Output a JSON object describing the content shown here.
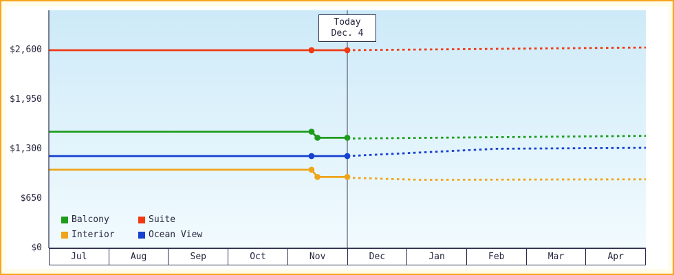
{
  "colors": {
    "frame_border": "#f7a41d",
    "frame_bg": "#fffdea",
    "axis": "#2a2a4a",
    "text": "#26263e",
    "plot_top": "#cdeaf8",
    "plot_bottom": "#f2fbfe",
    "today_line": "#5a5a72"
  },
  "today": {
    "line1": "Today",
    "line2": "Dec. 4"
  },
  "chart_data": {
    "type": "line",
    "x_months": [
      "Jul",
      "Aug",
      "Sep",
      "Oct",
      "Nov",
      "Dec",
      "Jan",
      "Feb",
      "Mar",
      "Apr"
    ],
    "x_range_months": 10,
    "today_month_index": 5.0,
    "grid": false,
    "legend_position": "bottom-left",
    "ylim": [
      0,
      3100
    ],
    "y_ticks": [
      {
        "value": 0,
        "label": "$0"
      },
      {
        "value": 650,
        "label": "$650"
      },
      {
        "value": 1300,
        "label": "$1,300"
      },
      {
        "value": 1950,
        "label": "$1,950"
      },
      {
        "value": 2600,
        "label": "$2,600"
      }
    ],
    "series": [
      {
        "name": "Balcony",
        "color": "#1d9b1d",
        "past": [
          [
            0,
            1530
          ],
          [
            4.4,
            1530
          ],
          [
            4.5,
            1450
          ],
          [
            5,
            1450
          ]
        ],
        "markers": [
          [
            4.4,
            1530
          ],
          [
            4.5,
            1450
          ],
          [
            5,
            1450
          ]
        ],
        "forecast": [
          [
            5,
            1440
          ],
          [
            10,
            1475
          ]
        ]
      },
      {
        "name": "Suite",
        "color": "#f03913",
        "past": [
          [
            0,
            2600
          ],
          [
            5,
            2600
          ]
        ],
        "markers": [
          [
            4.4,
            2600
          ],
          [
            5,
            2600
          ]
        ],
        "forecast": [
          [
            5,
            2600
          ],
          [
            10,
            2635
          ]
        ]
      },
      {
        "name": "Interior",
        "color": "#efa41a",
        "past": [
          [
            0,
            1030
          ],
          [
            4.4,
            1030
          ],
          [
            4.5,
            935
          ],
          [
            5,
            935
          ]
        ],
        "markers": [
          [
            4.4,
            1030
          ],
          [
            4.5,
            935
          ],
          [
            5,
            935
          ]
        ],
        "forecast": [
          [
            5,
            925
          ],
          [
            6.2,
            898
          ],
          [
            10,
            905
          ]
        ]
      },
      {
        "name": "Ocean View",
        "color": "#1540d0",
        "past": [
          [
            0,
            1210
          ],
          [
            5,
            1210
          ]
        ],
        "markers": [
          [
            4.4,
            1210
          ],
          [
            5,
            1210
          ]
        ],
        "forecast": [
          [
            5,
            1210
          ],
          [
            7.5,
            1305
          ],
          [
            10,
            1318
          ]
        ]
      }
    ]
  }
}
